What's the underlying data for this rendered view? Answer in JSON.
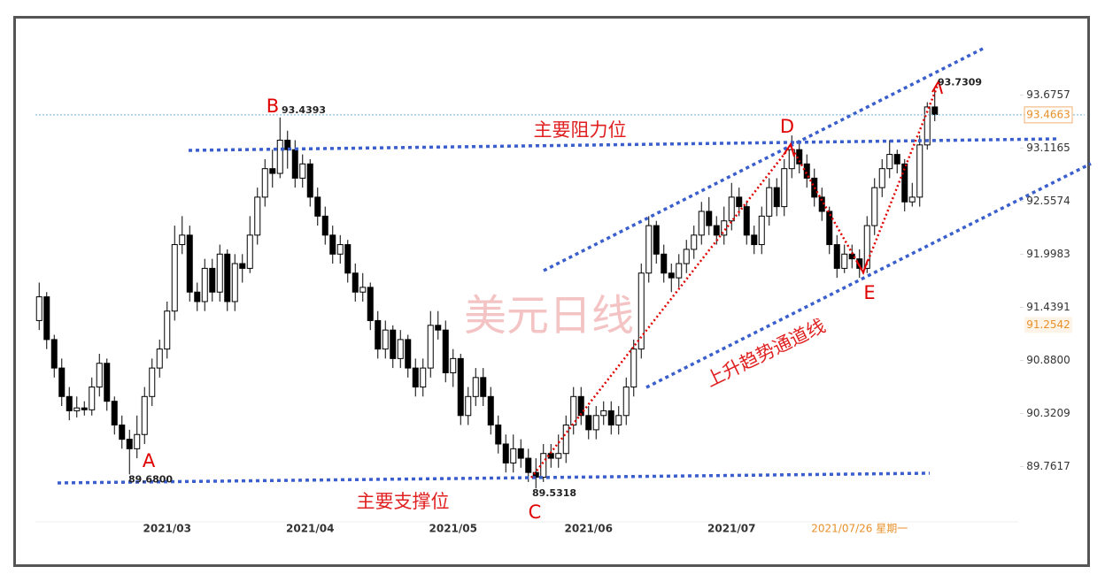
{
  "chart_data": {
    "type": "candlestick",
    "categories": [
      null,
      null,
      null,
      null,
      null,
      null,
      null,
      null,
      null,
      null,
      null,
      null,
      null,
      null,
      null,
      null,
      null,
      "2021/03",
      null,
      null,
      null,
      null,
      null,
      null,
      null,
      null,
      null,
      null,
      null,
      null,
      null,
      null,
      null,
      null,
      null,
      null,
      "2021/04",
      null,
      null,
      null,
      null,
      null,
      null,
      null,
      null,
      null,
      null,
      null,
      null,
      null,
      null,
      null,
      null,
      null,
      null,
      "2021/05",
      null,
      null,
      null,
      null,
      null,
      null,
      null,
      null,
      null,
      null,
      null,
      null,
      null,
      null,
      null,
      null,
      null,
      "2021/06",
      null,
      null,
      null,
      null,
      null,
      null,
      null,
      null,
      null,
      null,
      null,
      null,
      null,
      null,
      null,
      null,
      null,
      null,
      "2021/07",
      null,
      null,
      null,
      null,
      null,
      null,
      null,
      null,
      null,
      null,
      null,
      null,
      null,
      null,
      null,
      null,
      "2021/07/26 星期一",
      null,
      null,
      null,
      null,
      null,
      null,
      null,
      null,
      null,
      null
    ],
    "open": [
      91.3,
      91.55,
      91.1,
      90.8,
      90.5,
      90.35,
      90.38,
      90.36,
      90.6,
      90.85,
      90.45,
      90.2,
      90.05,
      89.95,
      90.1,
      90.5,
      90.8,
      91.0,
      91.4,
      92.1,
      92.2,
      91.6,
      91.5,
      91.85,
      91.6,
      92.0,
      91.5,
      91.9,
      91.85,
      92.2,
      92.6,
      92.9,
      92.85,
      93.2,
      93.1,
      92.8,
      92.95,
      92.6,
      92.4,
      92.2,
      92.0,
      92.1,
      91.8,
      91.6,
      91.65,
      91.3,
      91.0,
      91.2,
      90.9,
      91.1,
      90.8,
      90.6,
      90.8,
      91.25,
      91.2,
      90.75,
      90.9,
      90.3,
      90.5,
      90.7,
      90.5,
      90.2,
      90.0,
      89.8,
      89.95,
      89.85,
      89.7,
      89.65,
      89.9,
      89.85,
      89.9,
      90.2,
      90.5,
      90.3,
      90.15,
      90.3,
      90.35,
      90.2,
      90.3,
      90.6,
      91.0,
      91.8,
      92.3,
      92.0,
      91.8,
      91.75,
      91.9,
      92.05,
      92.2,
      92.45,
      92.3,
      92.2,
      92.35,
      92.6,
      92.5,
      92.2,
      92.1,
      92.4,
      92.7,
      92.5,
      92.9,
      93.1,
      92.95,
      92.8,
      92.6,
      92.45,
      92.1,
      91.85,
      92.0,
      91.95,
      91.85,
      92.3,
      92.7,
      92.9,
      93.05,
      92.95,
      92.55,
      92.6,
      93.15,
      93.55
    ],
    "high": [
      91.7,
      91.6,
      91.15,
      90.9,
      90.6,
      90.5,
      90.45,
      90.7,
      90.95,
      90.9,
      90.5,
      90.3,
      90.15,
      90.3,
      90.6,
      90.9,
      91.1,
      91.5,
      92.3,
      92.4,
      92.3,
      91.7,
      91.95,
      91.95,
      92.1,
      92.05,
      92.0,
      92.0,
      92.4,
      92.7,
      93.0,
      93.1,
      93.4393,
      93.3,
      93.2,
      93.05,
      93.0,
      92.7,
      92.5,
      92.3,
      92.2,
      92.15,
      91.9,
      91.8,
      91.7,
      91.4,
      91.3,
      91.25,
      91.2,
      91.15,
      90.9,
      90.9,
      91.4,
      91.4,
      91.3,
      91.0,
      90.95,
      90.6,
      90.8,
      90.8,
      90.6,
      90.3,
      90.1,
      90.1,
      90.05,
      89.95,
      89.85,
      90.0,
      90.0,
      90.1,
      90.3,
      90.6,
      90.6,
      90.4,
      90.4,
      90.45,
      90.45,
      90.4,
      90.7,
      91.1,
      91.9,
      92.4,
      92.35,
      92.1,
      91.9,
      92.0,
      92.15,
      92.3,
      92.55,
      92.6,
      92.4,
      92.5,
      92.75,
      92.7,
      92.55,
      92.3,
      92.5,
      92.8,
      92.8,
      93.0,
      93.25,
      93.2,
      93.05,
      92.9,
      92.7,
      92.5,
      92.2,
      92.1,
      92.1,
      92.05,
      92.4,
      92.8,
      93.0,
      93.2,
      93.1,
      93.0,
      92.75,
      93.25,
      93.6,
      93.7309
    ],
    "low": [
      91.2,
      91.0,
      90.7,
      90.4,
      90.25,
      90.28,
      90.3,
      90.3,
      90.5,
      90.35,
      90.1,
      89.95,
      89.68,
      89.85,
      90.0,
      90.4,
      90.7,
      90.9,
      91.3,
      92.0,
      91.5,
      91.4,
      91.4,
      91.5,
      91.5,
      91.4,
      91.4,
      91.7,
      91.8,
      92.1,
      92.5,
      92.7,
      92.8,
      92.9,
      92.7,
      92.7,
      92.5,
      92.3,
      92.1,
      91.9,
      91.9,
      91.7,
      91.5,
      91.5,
      91.2,
      90.9,
      90.9,
      90.8,
      90.8,
      90.7,
      90.5,
      90.5,
      90.7,
      91.1,
      90.65,
      90.6,
      90.2,
      90.2,
      90.4,
      90.4,
      90.1,
      89.9,
      89.7,
      89.7,
      89.75,
      89.6,
      89.5318,
      89.6,
      89.75,
      89.75,
      89.8,
      90.1,
      90.2,
      90.05,
      90.05,
      90.2,
      90.1,
      90.1,
      90.2,
      90.5,
      90.9,
      91.7,
      91.9,
      91.7,
      91.6,
      91.65,
      91.8,
      91.95,
      92.1,
      92.2,
      92.1,
      92.1,
      92.25,
      92.4,
      92.1,
      92.0,
      92.0,
      92.3,
      92.4,
      92.4,
      92.8,
      92.85,
      92.7,
      92.5,
      92.35,
      92.0,
      91.75,
      91.8,
      91.85,
      91.75,
      91.8,
      92.2,
      92.6,
      92.8,
      92.85,
      92.45,
      92.5,
      92.5,
      93.1,
      93.4
    ],
    "close": [
      91.55,
      91.1,
      90.8,
      90.5,
      90.35,
      90.38,
      90.36,
      90.6,
      90.85,
      90.45,
      90.2,
      90.05,
      89.95,
      90.1,
      90.5,
      90.8,
      91.0,
      91.4,
      92.1,
      92.2,
      91.6,
      91.5,
      91.85,
      91.6,
      92.0,
      91.5,
      91.9,
      91.85,
      92.2,
      92.6,
      92.9,
      92.85,
      93.2,
      93.1,
      92.8,
      92.95,
      92.6,
      92.4,
      92.2,
      92.0,
      92.1,
      91.8,
      91.6,
      91.65,
      91.3,
      91.0,
      91.2,
      90.9,
      91.1,
      90.8,
      90.6,
      90.8,
      91.25,
      91.2,
      90.75,
      90.9,
      90.3,
      90.5,
      90.7,
      90.5,
      90.2,
      90.0,
      89.8,
      89.95,
      89.85,
      89.7,
      89.65,
      89.9,
      89.85,
      89.9,
      90.2,
      90.5,
      90.3,
      90.15,
      90.3,
      90.35,
      90.2,
      90.3,
      90.6,
      91.0,
      91.8,
      92.3,
      92.0,
      91.8,
      91.75,
      91.9,
      92.05,
      92.2,
      92.45,
      92.3,
      92.2,
      92.35,
      92.6,
      92.5,
      92.2,
      92.1,
      92.4,
      92.7,
      92.5,
      92.9,
      93.1,
      92.95,
      92.8,
      92.6,
      92.45,
      92.1,
      91.85,
      92.0,
      91.95,
      91.85,
      92.3,
      92.7,
      92.9,
      93.05,
      92.95,
      92.55,
      92.6,
      93.15,
      93.55,
      93.47
    ],
    "up_color": "#ffffff",
    "down_color": "#000000",
    "ylim": [
      89.18,
      94.49
    ],
    "yticks": [
      89.7617,
      90.3209,
      {
        "value": 90.88,
        "label": "90.8800"
      },
      91.4391,
      91.9983,
      92.5574,
      93.1165,
      93.6757
    ],
    "price_markers": [
      {
        "value": 93.4663,
        "label": "93.4663"
      },
      {
        "value": 91.2542,
        "label": "91.2542"
      }
    ],
    "extreme_labels": [
      {
        "letter": "A",
        "value": 89.68,
        "label": "89.6800"
      },
      {
        "letter": "B",
        "value": 93.4393,
        "label": "93.4393"
      },
      {
        "letter": "C",
        "value": 89.5318,
        "label": "89.5318"
      },
      {
        "value": 93.7309,
        "label": "93.7309"
      }
    ],
    "point_letters": [
      "D",
      "E"
    ],
    "annotations": {
      "resistance": "主要阻力位",
      "support": "主要支撑位",
      "watermark": "美元日线",
      "channel": "上升趋势通道线"
    }
  }
}
